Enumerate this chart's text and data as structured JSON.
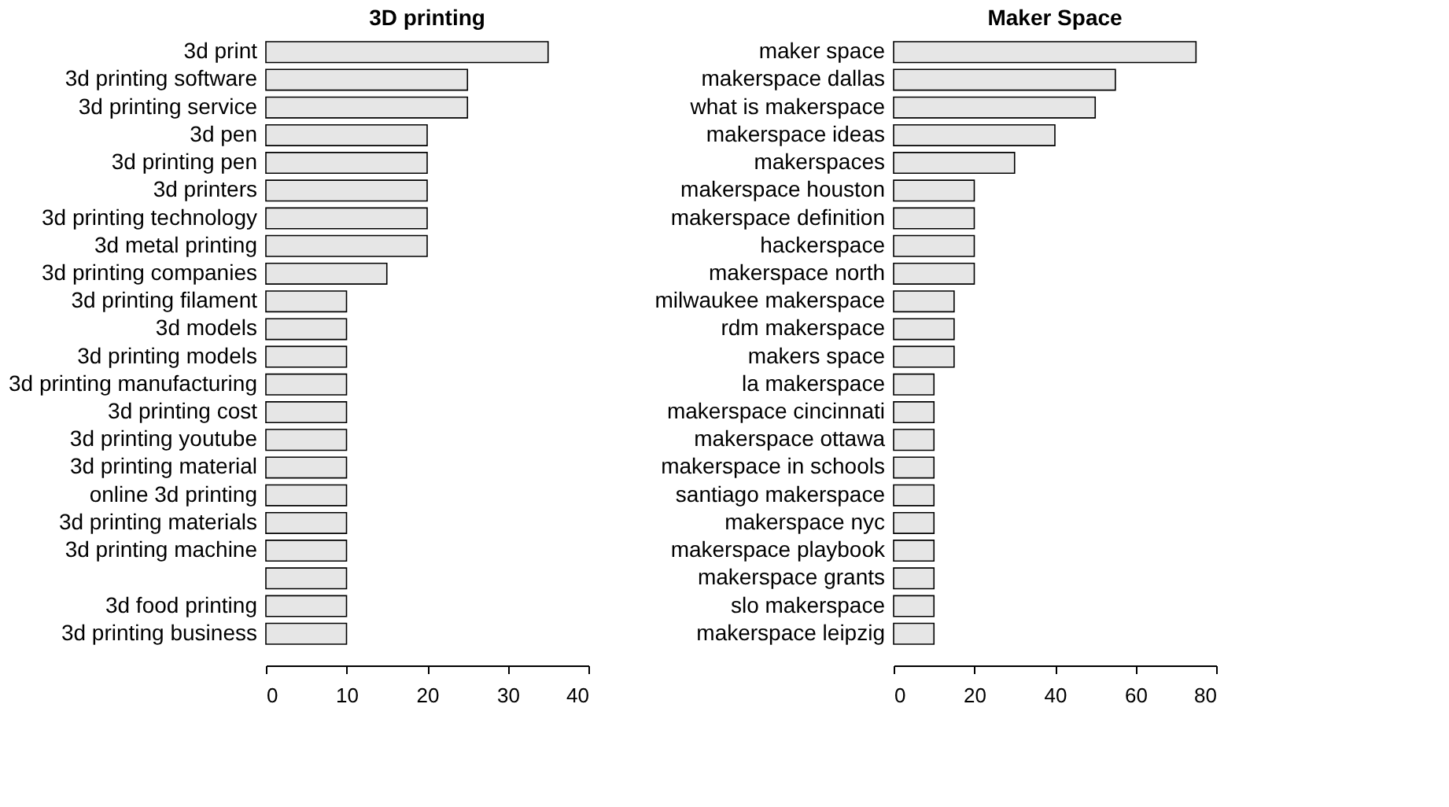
{
  "chart_data": [
    {
      "type": "bar",
      "orientation": "horizontal",
      "title": "3D printing",
      "categories": [
        "3d print",
        "3d printing software",
        "3d printing service",
        "3d pen",
        "3d printing pen",
        "3d printers",
        "3d printing technology",
        "3d metal printing",
        "3d printing companies",
        "3d printing filament",
        "3d models",
        "3d printing models",
        "3d printing manufacturing",
        "3d printing cost",
        "3d printing youtube",
        "3d printing material",
        "online 3d printing",
        "3d printing materials",
        "3d printing machine",
        null,
        "3d food printing",
        "3d printing business"
      ],
      "values": [
        35,
        25,
        25,
        20,
        20,
        20,
        20,
        20,
        15,
        10,
        10,
        10,
        10,
        10,
        10,
        10,
        10,
        10,
        10,
        10,
        10,
        10
      ],
      "color": "#e6e6e6",
      "xlim": [
        0,
        40
      ],
      "xticks": [
        0,
        10,
        20,
        30,
        40
      ],
      "grid": false
    },
    {
      "type": "bar",
      "orientation": "horizontal",
      "title": "Maker Space",
      "categories": [
        "maker space",
        "makerspace dallas",
        "what is makerspace",
        "makerspace ideas",
        "makerspaces",
        "makerspace houston",
        "makerspace definition",
        "hackerspace",
        "makerspace north",
        "milwaukee makerspace",
        "rdm makerspace",
        "makers space",
        "la makerspace",
        "makerspace cincinnati",
        "makerspace ottawa",
        "makerspace in schools",
        "santiago makerspace",
        "makerspace nyc",
        "makerspace playbook",
        "makerspace grants",
        "slo makerspace",
        "makerspace leipzig"
      ],
      "values": [
        75,
        55,
        50,
        40,
        30,
        20,
        20,
        20,
        20,
        15,
        15,
        15,
        10,
        10,
        10,
        10,
        10,
        10,
        10,
        10,
        10,
        10
      ],
      "color": "#e6e6e6",
      "xlim": [
        0,
        80
      ],
      "xticks": [
        0,
        20,
        40,
        60,
        80
      ],
      "grid": false
    }
  ]
}
